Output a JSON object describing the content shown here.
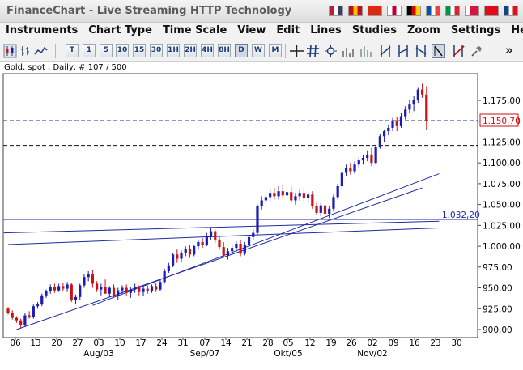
{
  "app": {
    "title": "FinanceChart - Live Streaming HTTP Technology",
    "flags": [
      {
        "name": "flag-us-icon",
        "colors": [
          "#b22234",
          "#ffffff",
          "#3c3b6e"
        ]
      },
      {
        "name": "flag-es-icon",
        "colors": [
          "#c60b1e",
          "#ffc400",
          "#c60b1e"
        ]
      },
      {
        "name": "flag-cn-icon",
        "colors": [
          "#de2910",
          "#de2910",
          "#de2910"
        ]
      },
      {
        "name": "flag-jp-icon",
        "colors": [
          "#ffffff",
          "#bc002d",
          "#ffffff"
        ]
      },
      {
        "name": "flag-de-icon",
        "colors": [
          "#000000",
          "#dd0000",
          "#ffce00"
        ]
      },
      {
        "name": "flag-fr-icon",
        "colors": [
          "#0055a4",
          "#ffffff",
          "#ef4135"
        ]
      },
      {
        "name": "flag-it-icon",
        "colors": [
          "#009246",
          "#ffffff",
          "#ce2b37"
        ]
      },
      {
        "name": "flag-pl-icon",
        "colors": [
          "#ffffff",
          "#dc143c",
          "#dc143c"
        ]
      },
      {
        "name": "flag-tr-icon",
        "colors": [
          "#e30a17",
          "#e30a17",
          "#e30a17"
        ]
      },
      {
        "name": "flag-cz-icon",
        "colors": [
          "#11457e",
          "#ffffff",
          "#d7141a"
        ]
      }
    ]
  },
  "menu": [
    "Instruments",
    "Chart Type",
    "Time Scale",
    "View",
    "Edit",
    "Lines",
    "Studies",
    "Zoom",
    "Settings",
    "Help"
  ],
  "toolbar": {
    "timeframes": [
      "T",
      "1",
      "5",
      "10",
      "15",
      "30",
      "1H",
      "2H",
      "4H",
      "8H",
      "D",
      "W",
      "M"
    ],
    "active_timeframe": "D",
    "more_label": "»"
  },
  "chart": {
    "header": "Gold, spot , Daily, # 107 / 500",
    "colors": {
      "up": "#1b1bb5",
      "down": "#cc1111",
      "line": "#1e2aa0"
    },
    "price_tag_dashed": "1.150,70",
    "price_tag_plain": "1.032,20"
  },
  "chart_data": {
    "type": "candlestick",
    "title": "Gold, spot , Daily, # 107 / 500",
    "ylim": [
      900,
      1200
    ],
    "y_ticks": [
      "900,00",
      "925,00",
      "950,00",
      "975,00",
      "1.000,00",
      "1.025,00",
      "1.050,00",
      "1.075,00",
      "1.100,00",
      "1.125,00",
      "1.150,00",
      "1.175,00"
    ],
    "x_ticks": [
      "06",
      "13",
      "20",
      "27",
      "03",
      "10",
      "17",
      "24",
      "31",
      "07",
      "14",
      "21",
      "28",
      "05",
      "12",
      "19",
      "26",
      "02",
      "09",
      "16",
      "23",
      "30"
    ],
    "month_labels": [
      "Aug/03",
      "Sep/07",
      "Okt/05",
      "Nov/02"
    ],
    "horizontal_lines": [
      {
        "value": 1150.7,
        "style": "dashed"
      },
      {
        "value": 1121,
        "style": "dashed"
      },
      {
        "value": 1032.2,
        "style": "solid"
      }
    ],
    "trendlines": [
      {
        "from_index": 2,
        "from_value": 900,
        "to_index": 98,
        "to_value": 1070
      },
      {
        "from_index": 20,
        "from_value": 929,
        "to_index": 102,
        "to_value": 1087
      },
      {
        "from_index": -1,
        "from_value": 1016,
        "to_index": 102,
        "to_value": 1030
      },
      {
        "from_index": 0,
        "from_value": 1002,
        "to_index": 102,
        "to_value": 1022
      }
    ],
    "candles": [
      [
        925,
        927,
        918,
        920
      ],
      [
        920,
        923,
        912,
        914
      ],
      [
        914,
        916,
        908,
        911
      ],
      [
        911,
        913,
        902,
        905
      ],
      [
        905,
        920,
        903,
        917
      ],
      [
        917,
        922,
        913,
        915
      ],
      [
        915,
        930,
        913,
        928
      ],
      [
        928,
        933,
        925,
        930
      ],
      [
        930,
        943,
        928,
        941
      ],
      [
        941,
        948,
        938,
        946
      ],
      [
        946,
        954,
        943,
        951
      ],
      [
        951,
        955,
        944,
        947
      ],
      [
        947,
        955,
        945,
        952
      ],
      [
        952,
        956,
        946,
        949
      ],
      [
        949,
        957,
        945,
        954
      ],
      [
        954,
        956,
        933,
        935
      ],
      [
        935,
        942,
        930,
        939
      ],
      [
        939,
        955,
        935,
        953
      ],
      [
        953,
        966,
        950,
        963
      ],
      [
        963,
        970,
        958,
        966
      ],
      [
        966,
        971,
        950,
        955
      ],
      [
        955,
        958,
        945,
        948
      ],
      [
        948,
        955,
        941,
        951
      ],
      [
        951,
        960,
        945,
        943
      ],
      [
        943,
        952,
        939,
        950
      ],
      [
        950,
        954,
        938,
        940
      ],
      [
        940,
        950,
        935,
        947
      ],
      [
        947,
        953,
        943,
        950
      ],
      [
        950,
        954,
        941,
        944
      ],
      [
        944,
        951,
        938,
        948
      ],
      [
        948,
        955,
        944,
        951
      ],
      [
        951,
        953,
        941,
        945
      ],
      [
        945,
        952,
        940,
        949
      ],
      [
        949,
        953,
        943,
        946
      ],
      [
        946,
        954,
        944,
        952
      ],
      [
        952,
        956,
        945,
        948
      ],
      [
        948,
        960,
        946,
        957
      ],
      [
        957,
        973,
        955,
        970
      ],
      [
        970,
        980,
        968,
        977
      ],
      [
        977,
        992,
        975,
        990
      ],
      [
        990,
        996,
        980,
        985
      ],
      [
        985,
        995,
        981,
        992
      ],
      [
        992,
        1000,
        988,
        997
      ],
      [
        997,
        1002,
        986,
        990
      ],
      [
        990,
        1002,
        988,
        1000
      ],
      [
        1000,
        1008,
        996,
        1005
      ],
      [
        1005,
        1010,
        998,
        1002
      ],
      [
        1002,
        1016,
        1000,
        1012
      ],
      [
        1012,
        1022,
        1008,
        1018
      ],
      [
        1018,
        1020,
        1004,
        1008
      ],
      [
        1008,
        1012,
        996,
        999
      ],
      [
        999,
        1005,
        986,
        989
      ],
      [
        989,
        998,
        984,
        994
      ],
      [
        994,
        1002,
        990,
        998
      ],
      [
        998,
        1006,
        994,
        1003
      ],
      [
        1003,
        1008,
        988,
        991
      ],
      [
        991,
        1005,
        989,
        1001
      ],
      [
        1001,
        1015,
        998,
        1011
      ],
      [
        1011,
        1020,
        1008,
        1016
      ],
      [
        1016,
        1050,
        1014,
        1048
      ],
      [
        1048,
        1060,
        1044,
        1055
      ],
      [
        1055,
        1063,
        1050,
        1059
      ],
      [
        1059,
        1068,
        1054,
        1064
      ],
      [
        1064,
        1070,
        1056,
        1060
      ],
      [
        1060,
        1072,
        1056,
        1066
      ],
      [
        1066,
        1074,
        1058,
        1061
      ],
      [
        1061,
        1070,
        1056,
        1065
      ],
      [
        1065,
        1072,
        1052,
        1055
      ],
      [
        1055,
        1064,
        1050,
        1060
      ],
      [
        1060,
        1068,
        1055,
        1064
      ],
      [
        1064,
        1070,
        1054,
        1058
      ],
      [
        1058,
        1065,
        1052,
        1062
      ],
      [
        1062,
        1066,
        1045,
        1048
      ],
      [
        1048,
        1052,
        1038,
        1040
      ],
      [
        1040,
        1052,
        1036,
        1049
      ],
      [
        1049,
        1052,
        1036,
        1039
      ],
      [
        1039,
        1048,
        1034,
        1045
      ],
      [
        1045,
        1062,
        1042,
        1059
      ],
      [
        1059,
        1075,
        1056,
        1072
      ],
      [
        1072,
        1090,
        1068,
        1088
      ],
      [
        1088,
        1098,
        1084,
        1094
      ],
      [
        1094,
        1100,
        1086,
        1090
      ],
      [
        1090,
        1102,
        1087,
        1098
      ],
      [
        1098,
        1106,
        1094,
        1103
      ],
      [
        1103,
        1110,
        1098,
        1106
      ],
      [
        1106,
        1115,
        1102,
        1110
      ],
      [
        1110,
        1118,
        1096,
        1100
      ],
      [
        1100,
        1122,
        1098,
        1119
      ],
      [
        1119,
        1135,
        1117,
        1132
      ],
      [
        1132,
        1140,
        1125,
        1138
      ],
      [
        1138,
        1146,
        1133,
        1142
      ],
      [
        1142,
        1154,
        1138,
        1151
      ],
      [
        1151,
        1155,
        1138,
        1144
      ],
      [
        1144,
        1160,
        1142,
        1156
      ],
      [
        1156,
        1168,
        1152,
        1164
      ],
      [
        1164,
        1175,
        1160,
        1170
      ],
      [
        1170,
        1180,
        1162,
        1175
      ],
      [
        1175,
        1190,
        1172,
        1188
      ],
      [
        1188,
        1195,
        1178,
        1182
      ],
      [
        1182,
        1192,
        1140,
        1150
      ]
    ]
  }
}
